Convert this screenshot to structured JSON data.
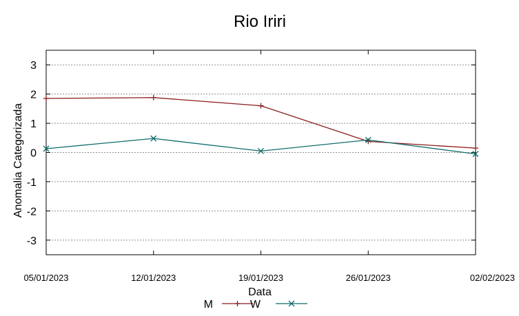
{
  "chart_data": {
    "type": "line",
    "title": "Rio Iriri",
    "xlabel": "Data",
    "ylabel": "Anomalia Categorizada",
    "categories": [
      "05/01/2023",
      "12/01/2023",
      "19/01/2023",
      "26/01/2023",
      "02/02/2023"
    ],
    "ylim": [
      -3.5,
      3.5
    ],
    "yticks": [
      3,
      2,
      1,
      0,
      -1,
      -2,
      -3
    ],
    "ytick_labels": [
      "3",
      "2",
      "1",
      "0",
      "-1",
      "-2",
      "-3"
    ],
    "grid": true,
    "legend_position": "bottom-center",
    "series": [
      {
        "name": "M",
        "marker": "plus",
        "color": "#8b1a1a",
        "values": [
          1.85,
          1.88,
          1.6,
          0.38,
          0.15
        ]
      },
      {
        "name": "W",
        "marker": "x",
        "color": "#0f6b6b",
        "values": [
          0.13,
          0.48,
          0.05,
          0.43,
          -0.05
        ]
      }
    ]
  }
}
